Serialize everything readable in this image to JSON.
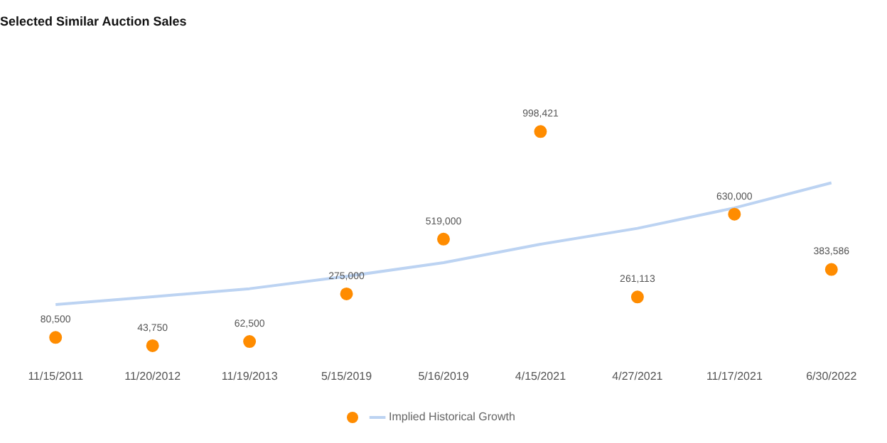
{
  "chart_data": {
    "type": "scatter",
    "title": "Selected Similar Auction Sales",
    "categories": [
      "11/15/2011",
      "11/20/2012",
      "11/19/2013",
      "5/15/2019",
      "5/16/2019",
      "4/15/2021",
      "4/27/2021",
      "11/17/2021",
      "6/30/2022"
    ],
    "legend": "bottom",
    "grid": false,
    "tick_labels": "x",
    "series": [
      {
        "marker": "circle",
        "color": "#ff8c00",
        "values": [
          80500,
          43750,
          62500,
          275000,
          519000,
          998421,
          261113,
          630000,
          383586
        ],
        "value_labels": [
          "80,500",
          "43,750",
          "62,500",
          "275,000",
          "519,000",
          "998,421",
          "261,113",
          "630,000",
          "383,586"
        ]
      },
      {
        "type": "line",
        "name": "Implied Historical Growth",
        "color": "#bcd3f2",
        "values": [
          227000,
          262000,
          298000,
          353000,
          414000,
          496000,
          567000,
          658000,
          770000
        ]
      }
    ]
  }
}
